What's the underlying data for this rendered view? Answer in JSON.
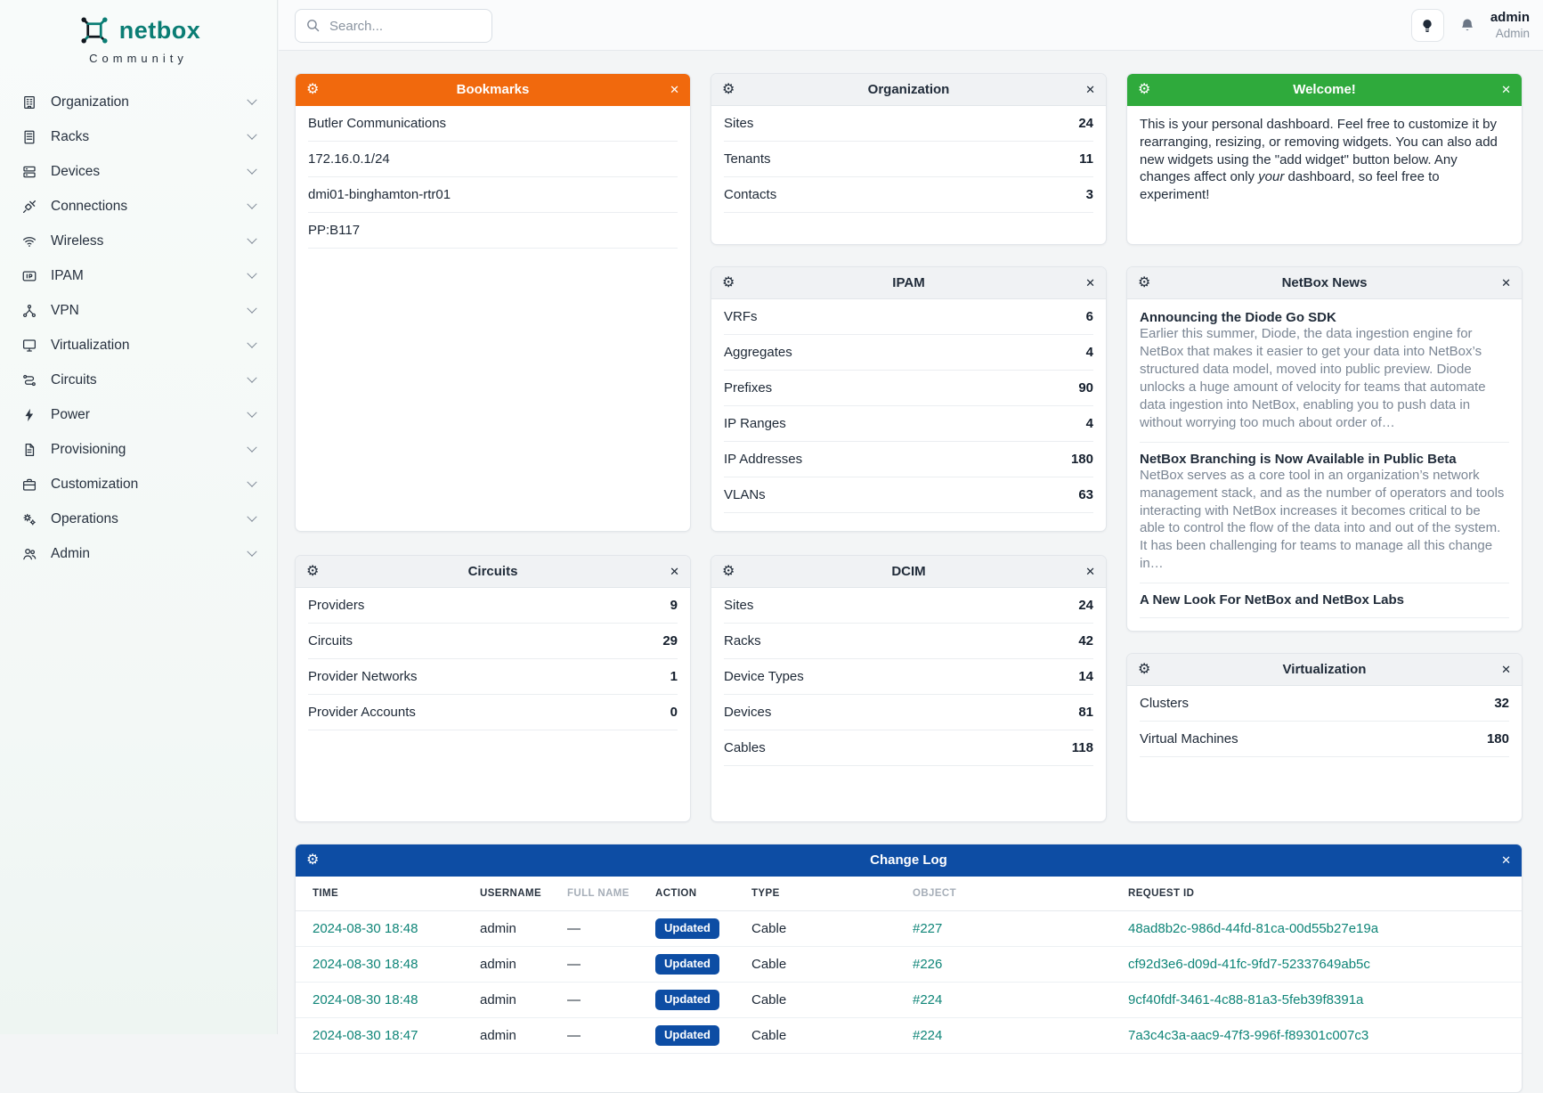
{
  "brand": {
    "name": "netbox",
    "edition": "Community"
  },
  "topbar": {
    "search_placeholder": "Search...",
    "user": {
      "username": "admin",
      "role": "Admin"
    }
  },
  "sidebar": {
    "items": [
      {
        "label": "Organization",
        "icon": "building"
      },
      {
        "label": "Racks",
        "icon": "rack"
      },
      {
        "label": "Devices",
        "icon": "server"
      },
      {
        "label": "Connections",
        "icon": "plug"
      },
      {
        "label": "Wireless",
        "icon": "wifi"
      },
      {
        "label": "IPAM",
        "icon": "ip-card"
      },
      {
        "label": "VPN",
        "icon": "network-nodes"
      },
      {
        "label": "Virtualization",
        "icon": "monitor"
      },
      {
        "label": "Circuits",
        "icon": "route"
      },
      {
        "label": "Power",
        "icon": "bolt"
      },
      {
        "label": "Provisioning",
        "icon": "document"
      },
      {
        "label": "Customization",
        "icon": "briefcase"
      },
      {
        "label": "Operations",
        "icon": "gears"
      },
      {
        "label": "Admin",
        "icon": "users"
      }
    ]
  },
  "widgets": {
    "bookmarks": {
      "title": "Bookmarks",
      "items": [
        "Butler Communications",
        "172.16.0.1/24",
        "dmi01-binghamton-rtr01",
        "PP:B117"
      ]
    },
    "organization": {
      "title": "Organization",
      "rows": [
        {
          "label": "Sites",
          "value": "24"
        },
        {
          "label": "Tenants",
          "value": "11"
        },
        {
          "label": "Contacts",
          "value": "3"
        }
      ]
    },
    "welcome": {
      "title": "Welcome!",
      "text_before": "This is your personal dashboard. Feel free to customize it by rearranging, resizing, or removing widgets. You can also add new widgets using the \"add widget\" button below. Any changes affect only ",
      "text_italic": "your",
      "text_after": " dashboard, so feel free to experiment!"
    },
    "ipam": {
      "title": "IPAM",
      "rows": [
        {
          "label": "VRFs",
          "value": "6"
        },
        {
          "label": "Aggregates",
          "value": "4"
        },
        {
          "label": "Prefixes",
          "value": "90"
        },
        {
          "label": "IP Ranges",
          "value": "4"
        },
        {
          "label": "IP Addresses",
          "value": "180"
        },
        {
          "label": "VLANs",
          "value": "63"
        }
      ]
    },
    "news": {
      "title": "NetBox News",
      "items": [
        {
          "title": "Announcing the Diode Go SDK",
          "body": "Earlier this summer, Diode, the data ingestion engine for NetBox that makes it easier to get your data into NetBox’s structured data model, moved into public preview. Diode unlocks a huge amount of velocity for teams that automate data ingestion into NetBox, enabling you to push data in without worrying too much about order of…"
        },
        {
          "title": "NetBox Branching is Now Available in Public Beta",
          "body": "NetBox serves as a core tool in an organization’s network management stack, and as the number of operators and tools interacting with NetBox increases it becomes critical to be able to control the flow of the data into and out of the system. It has been challenging for teams to manage all this change in…"
        },
        {
          "title": "A New Look For NetBox and NetBox Labs",
          "body": ""
        }
      ]
    },
    "circuits": {
      "title": "Circuits",
      "rows": [
        {
          "label": "Providers",
          "value": "9"
        },
        {
          "label": "Circuits",
          "value": "29"
        },
        {
          "label": "Provider Networks",
          "value": "1"
        },
        {
          "label": "Provider Accounts",
          "value": "0"
        }
      ]
    },
    "dcim": {
      "title": "DCIM",
      "rows": [
        {
          "label": "Sites",
          "value": "24"
        },
        {
          "label": "Racks",
          "value": "42"
        },
        {
          "label": "Device Types",
          "value": "14"
        },
        {
          "label": "Devices",
          "value": "81"
        },
        {
          "label": "Cables",
          "value": "118"
        }
      ]
    },
    "virtualization": {
      "title": "Virtualization",
      "rows": [
        {
          "label": "Clusters",
          "value": "32"
        },
        {
          "label": "Virtual Machines",
          "value": "180"
        }
      ]
    },
    "changelog": {
      "title": "Change Log",
      "columns": [
        {
          "label": "Time"
        },
        {
          "label": "Username"
        },
        {
          "label": "Full Name"
        },
        {
          "label": "Action"
        },
        {
          "label": "Type"
        },
        {
          "label": "Object"
        },
        {
          "label": "Request ID"
        }
      ],
      "columns_display": [
        "TIME",
        "USERNAME",
        "FULL NAME",
        "ACTION",
        "TYPE",
        "OBJECT",
        "REQUEST ID"
      ],
      "rows": [
        {
          "time": "2024-08-30 18:48",
          "username": "admin",
          "full_name": "—",
          "action": "Updated",
          "type": "Cable",
          "object": "#227",
          "request_id": "48ad8b2c-986d-44fd-81ca-00d55b27e19a"
        },
        {
          "time": "2024-08-30 18:48",
          "username": "admin",
          "full_name": "—",
          "action": "Updated",
          "type": "Cable",
          "object": "#226",
          "request_id": "cf92d3e6-d09d-41fc-9fd7-52337649ab5c"
        },
        {
          "time": "2024-08-30 18:48",
          "username": "admin",
          "full_name": "—",
          "action": "Updated",
          "type": "Cable",
          "object": "#224",
          "request_id": "9cf40fdf-3461-4c88-81a3-5feb39f8391a"
        },
        {
          "time": "2024-08-30 18:47",
          "username": "admin",
          "full_name": "—",
          "action": "Updated",
          "type": "Cable",
          "object": "#224",
          "request_id": "7a3c4c3a-aac9-47f3-996f-f89301c007c3"
        }
      ]
    }
  },
  "colors": {
    "accent_teal": "#0a7d74",
    "link_teal": "#0f8578",
    "header_orange": "#f1690d",
    "header_green": "#2faa3c",
    "header_blue": "#0d4da4",
    "badge_blue": "#0d4da4"
  }
}
